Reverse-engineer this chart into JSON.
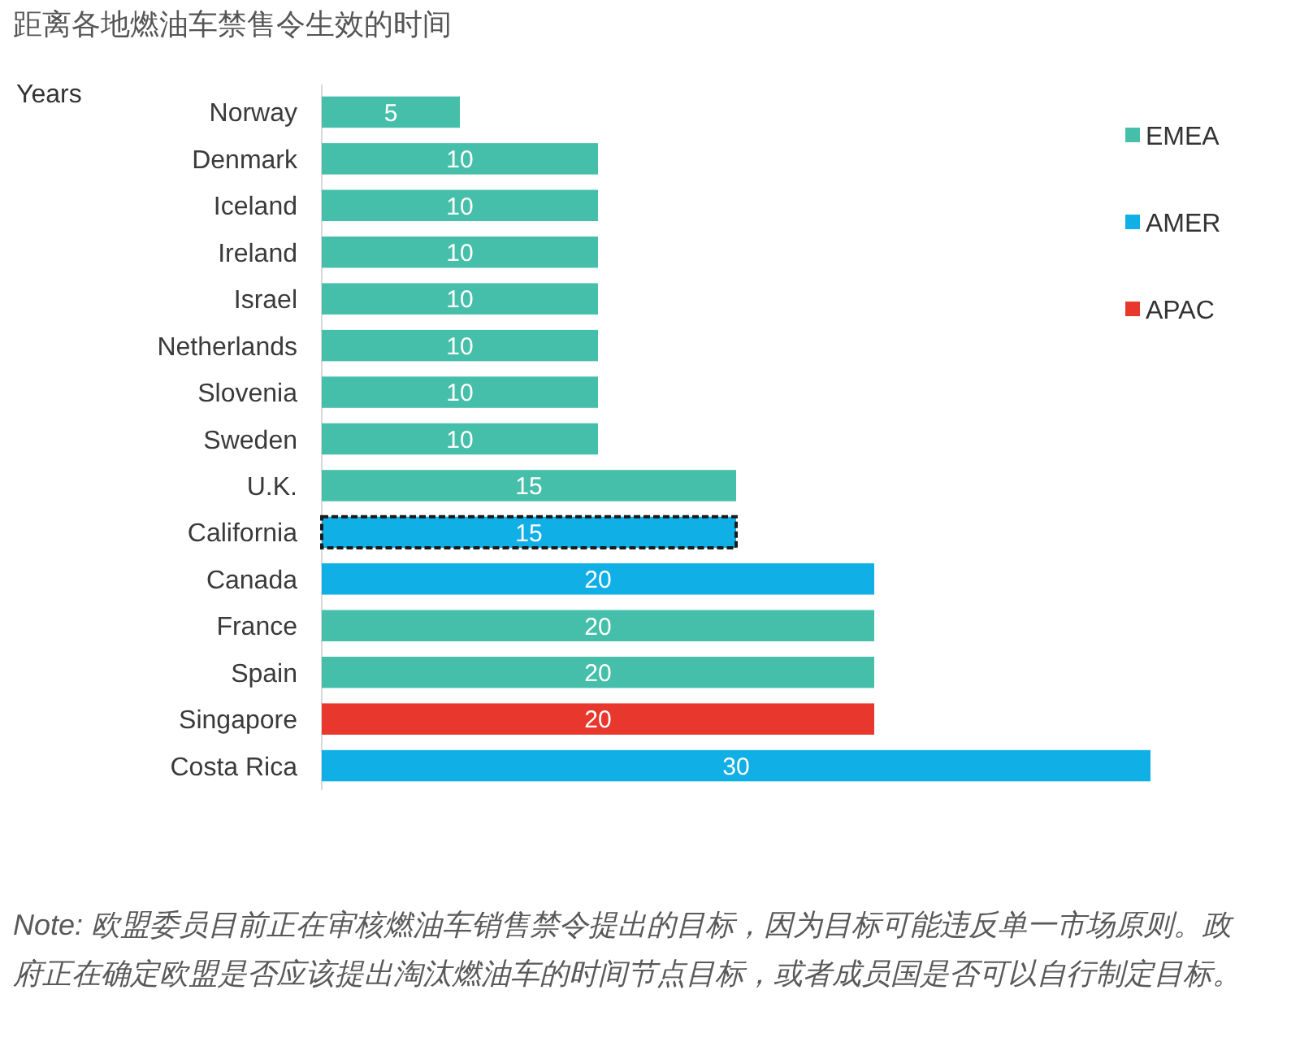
{
  "chart_data": {
    "type": "bar",
    "orientation": "horizontal",
    "stacked": true,
    "data_labels": true,
    "legend": "right",
    "tick_labels": "y",
    "title": "距离各地燃油车禁售令生效的时间",
    "xlabel": "Years",
    "categories": [
      "Norway",
      "Denmark",
      "Iceland",
      "Ireland",
      "Israel",
      "Netherlands",
      "Slovenia",
      "Sweden",
      "U.K.",
      "California",
      "Canada",
      "France",
      "Spain",
      "Singapore",
      "Costa Rica"
    ],
    "series": [
      {
        "name": "EMEA",
        "color": "#45bfa9",
        "values": [
          5,
          10,
          10,
          10,
          10,
          10,
          10,
          10,
          15,
          null,
          null,
          20,
          20,
          null,
          null
        ]
      },
      {
        "name": "AMER",
        "color": "#10afe5",
        "values": [
          null,
          null,
          null,
          null,
          null,
          null,
          null,
          null,
          null,
          15,
          20,
          null,
          null,
          null,
          30
        ]
      },
      {
        "name": "APAC",
        "color": "#e8372c",
        "values": [
          null,
          null,
          null,
          null,
          null,
          null,
          null,
          null,
          null,
          null,
          null,
          null,
          null,
          20,
          null
        ]
      }
    ],
    "annotations": [
      "Note: 欧盟委员目前正在审核燃油车销售禁令提出的目标，因为目标可能违反单一市场原则。政府正在确定欧盟是否应该提出淘汰燃油车的时间节点目标，或者成员国是否可以自行制定目标。"
    ]
  }
}
